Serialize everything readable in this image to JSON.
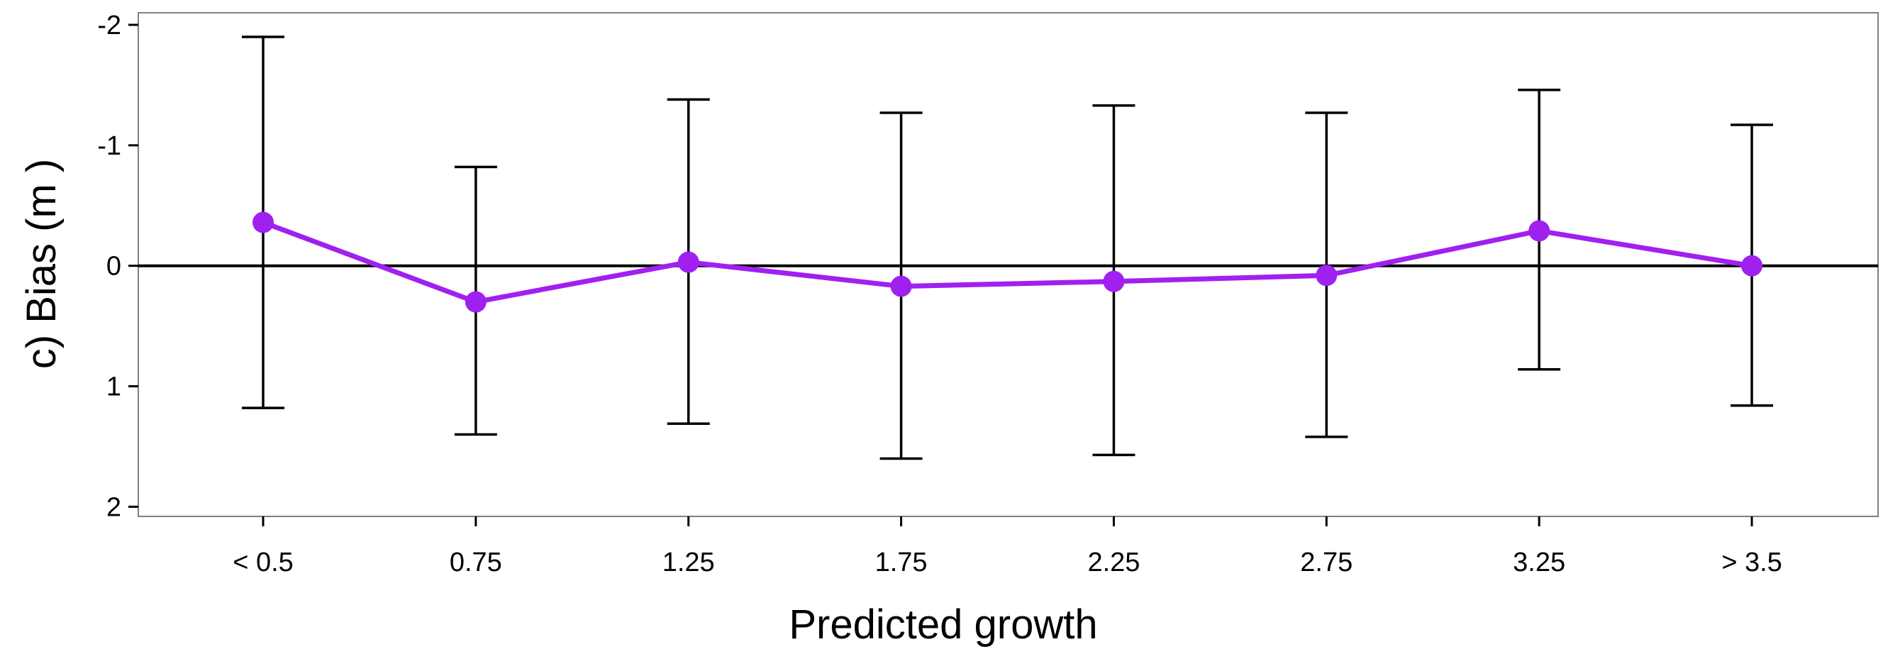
{
  "chart_data": {
    "type": "line",
    "title": "",
    "xlabel": "Predicted growth",
    "ylabel": "c) Bias (m )",
    "categories": [
      "< 0.5",
      "0.75",
      "1.25",
      "1.75",
      "2.25",
      "2.75",
      "3.25",
      "> 3.5"
    ],
    "y_axis_reversed": true,
    "ylim": [
      -2.1,
      2.08
    ],
    "y_ticks": [
      -2,
      -1,
      0,
      1,
      2
    ],
    "reference_line": 0,
    "series": [
      {
        "name": "Bias",
        "color": "#a020f0",
        "values": [
          -0.36,
          0.3,
          -0.03,
          0.17,
          0.13,
          0.08,
          -0.29,
          0.0
        ],
        "error_low": [
          -1.9,
          -0.82,
          -1.38,
          -1.27,
          -1.33,
          -1.27,
          -1.46,
          -1.17
        ],
        "error_high": [
          1.18,
          1.4,
          1.31,
          1.6,
          1.57,
          1.42,
          0.86,
          1.16
        ]
      }
    ],
    "grid": false,
    "legend": "none"
  }
}
